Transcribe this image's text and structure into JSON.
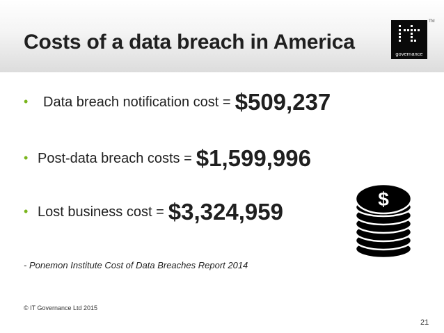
{
  "slide": {
    "title": "Costs of a data breach in America",
    "logo": {
      "text": "governance",
      "tm": "TM",
      "icon": "it-governance-logo"
    },
    "bullets": [
      {
        "label": "Data breach notification cost = ",
        "amount": "$509,237"
      },
      {
        "label": "Post-data breach costs = ",
        "amount": "$1,599,996"
      },
      {
        "label": "Lost business cost = ",
        "amount": "$3,324,959"
      }
    ],
    "source": "- Ponemon Institute Cost of Data Breaches Report 2014",
    "footer": "© IT Governance Ltd 2015",
    "page_number": "21",
    "colors": {
      "bullet": "#7ab51d",
      "text": "#1f1f1f",
      "logo_bg": "#0a0a0a"
    },
    "icons": {
      "coins": "dollar-coin-stack-icon",
      "bullet": "bullet-dot"
    }
  }
}
